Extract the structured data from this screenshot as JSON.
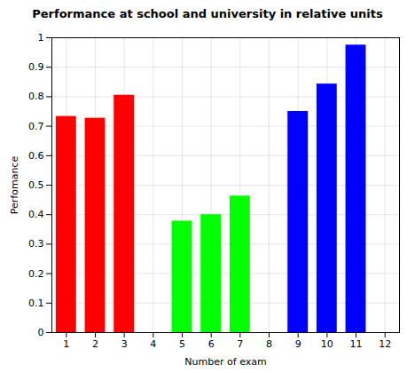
{
  "chart_data": {
    "type": "bar",
    "title": "Performance at school and university in relative units",
    "xlabel": "Number of exam",
    "ylabel": "Perfomance",
    "x": [
      1,
      2,
      3,
      5,
      6,
      7,
      9,
      10,
      11
    ],
    "values": [
      0.733,
      0.727,
      0.805,
      0.378,
      0.4,
      0.463,
      0.75,
      0.843,
      0.975
    ],
    "colors": [
      "#ff0000",
      "#ff0000",
      "#ff0000",
      "#00ff00",
      "#00ff00",
      "#00ff00",
      "#0000ff",
      "#0000ff",
      "#0000ff"
    ],
    "xlim": [
      0.5,
      12.5
    ],
    "ylim": [
      0,
      1
    ],
    "xticks": [
      1,
      2,
      3,
      4,
      5,
      6,
      7,
      8,
      9,
      10,
      11,
      12
    ],
    "yticks": [
      0,
      0.1,
      0.2,
      0.3,
      0.4,
      0.5,
      0.6,
      0.7,
      0.8,
      0.9,
      1
    ],
    "grid": true
  }
}
